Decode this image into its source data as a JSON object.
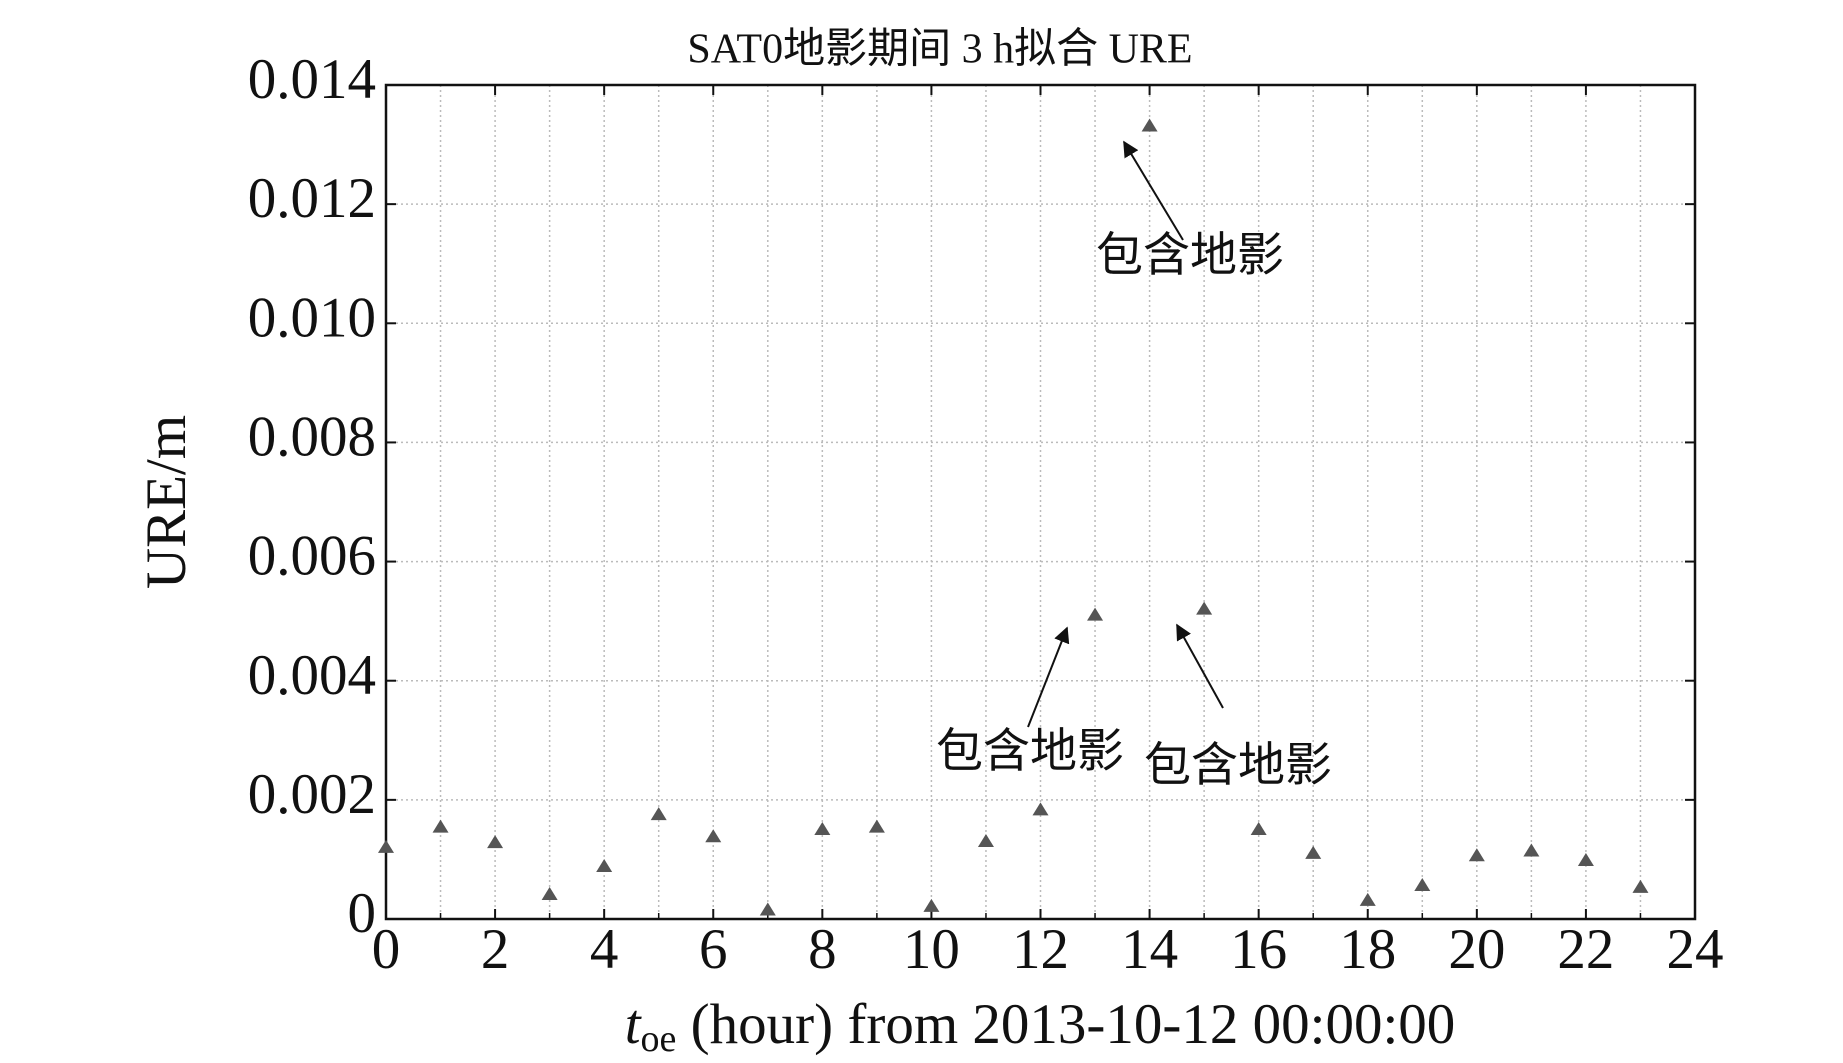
{
  "chart_data": {
    "type": "scatter",
    "title": "SAT0地影期间 3 h拟合 URE",
    "y_label": "URE/m",
    "x_label": {
      "var": "t",
      "sub": "oe",
      "text": " (hour) from 2013-10-12 00:00:00"
    },
    "x": [
      0,
      1,
      2,
      3,
      4,
      5,
      6,
      7,
      8,
      9,
      10,
      11,
      12,
      13,
      14,
      15,
      16,
      17,
      18,
      19,
      20,
      21,
      22,
      23
    ],
    "values": [
      0.00121,
      0.00155,
      0.00129,
      0.00042,
      0.00089,
      0.00176,
      0.00139,
      0.00016,
      0.00151,
      0.00155,
      0.00022,
      0.00131,
      0.00184,
      0.00511,
      0.01332,
      0.00521,
      0.00151,
      0.00111,
      0.00032,
      0.00057,
      0.00107,
      0.00115,
      0.00099,
      0.00054
    ],
    "color": "#555555",
    "xlim": [
      0,
      24
    ],
    "xticks": [
      0,
      2,
      4,
      6,
      8,
      10,
      12,
      14,
      16,
      18,
      20,
      22,
      24
    ],
    "x_minor_ticks": [
      1,
      3,
      5,
      7,
      9,
      11,
      13,
      15,
      17,
      19,
      21,
      23
    ],
    "ylim": [
      0,
      0.014
    ],
    "yticks": [
      0,
      0.002,
      0.004,
      0.006,
      0.008,
      {
        "value": 0.01,
        "label": "0.010"
      },
      0.012,
      0.014
    ],
    "grid": true,
    "annotations": [
      "包含地影",
      "包含地影",
      "包含地影"
    ]
  }
}
